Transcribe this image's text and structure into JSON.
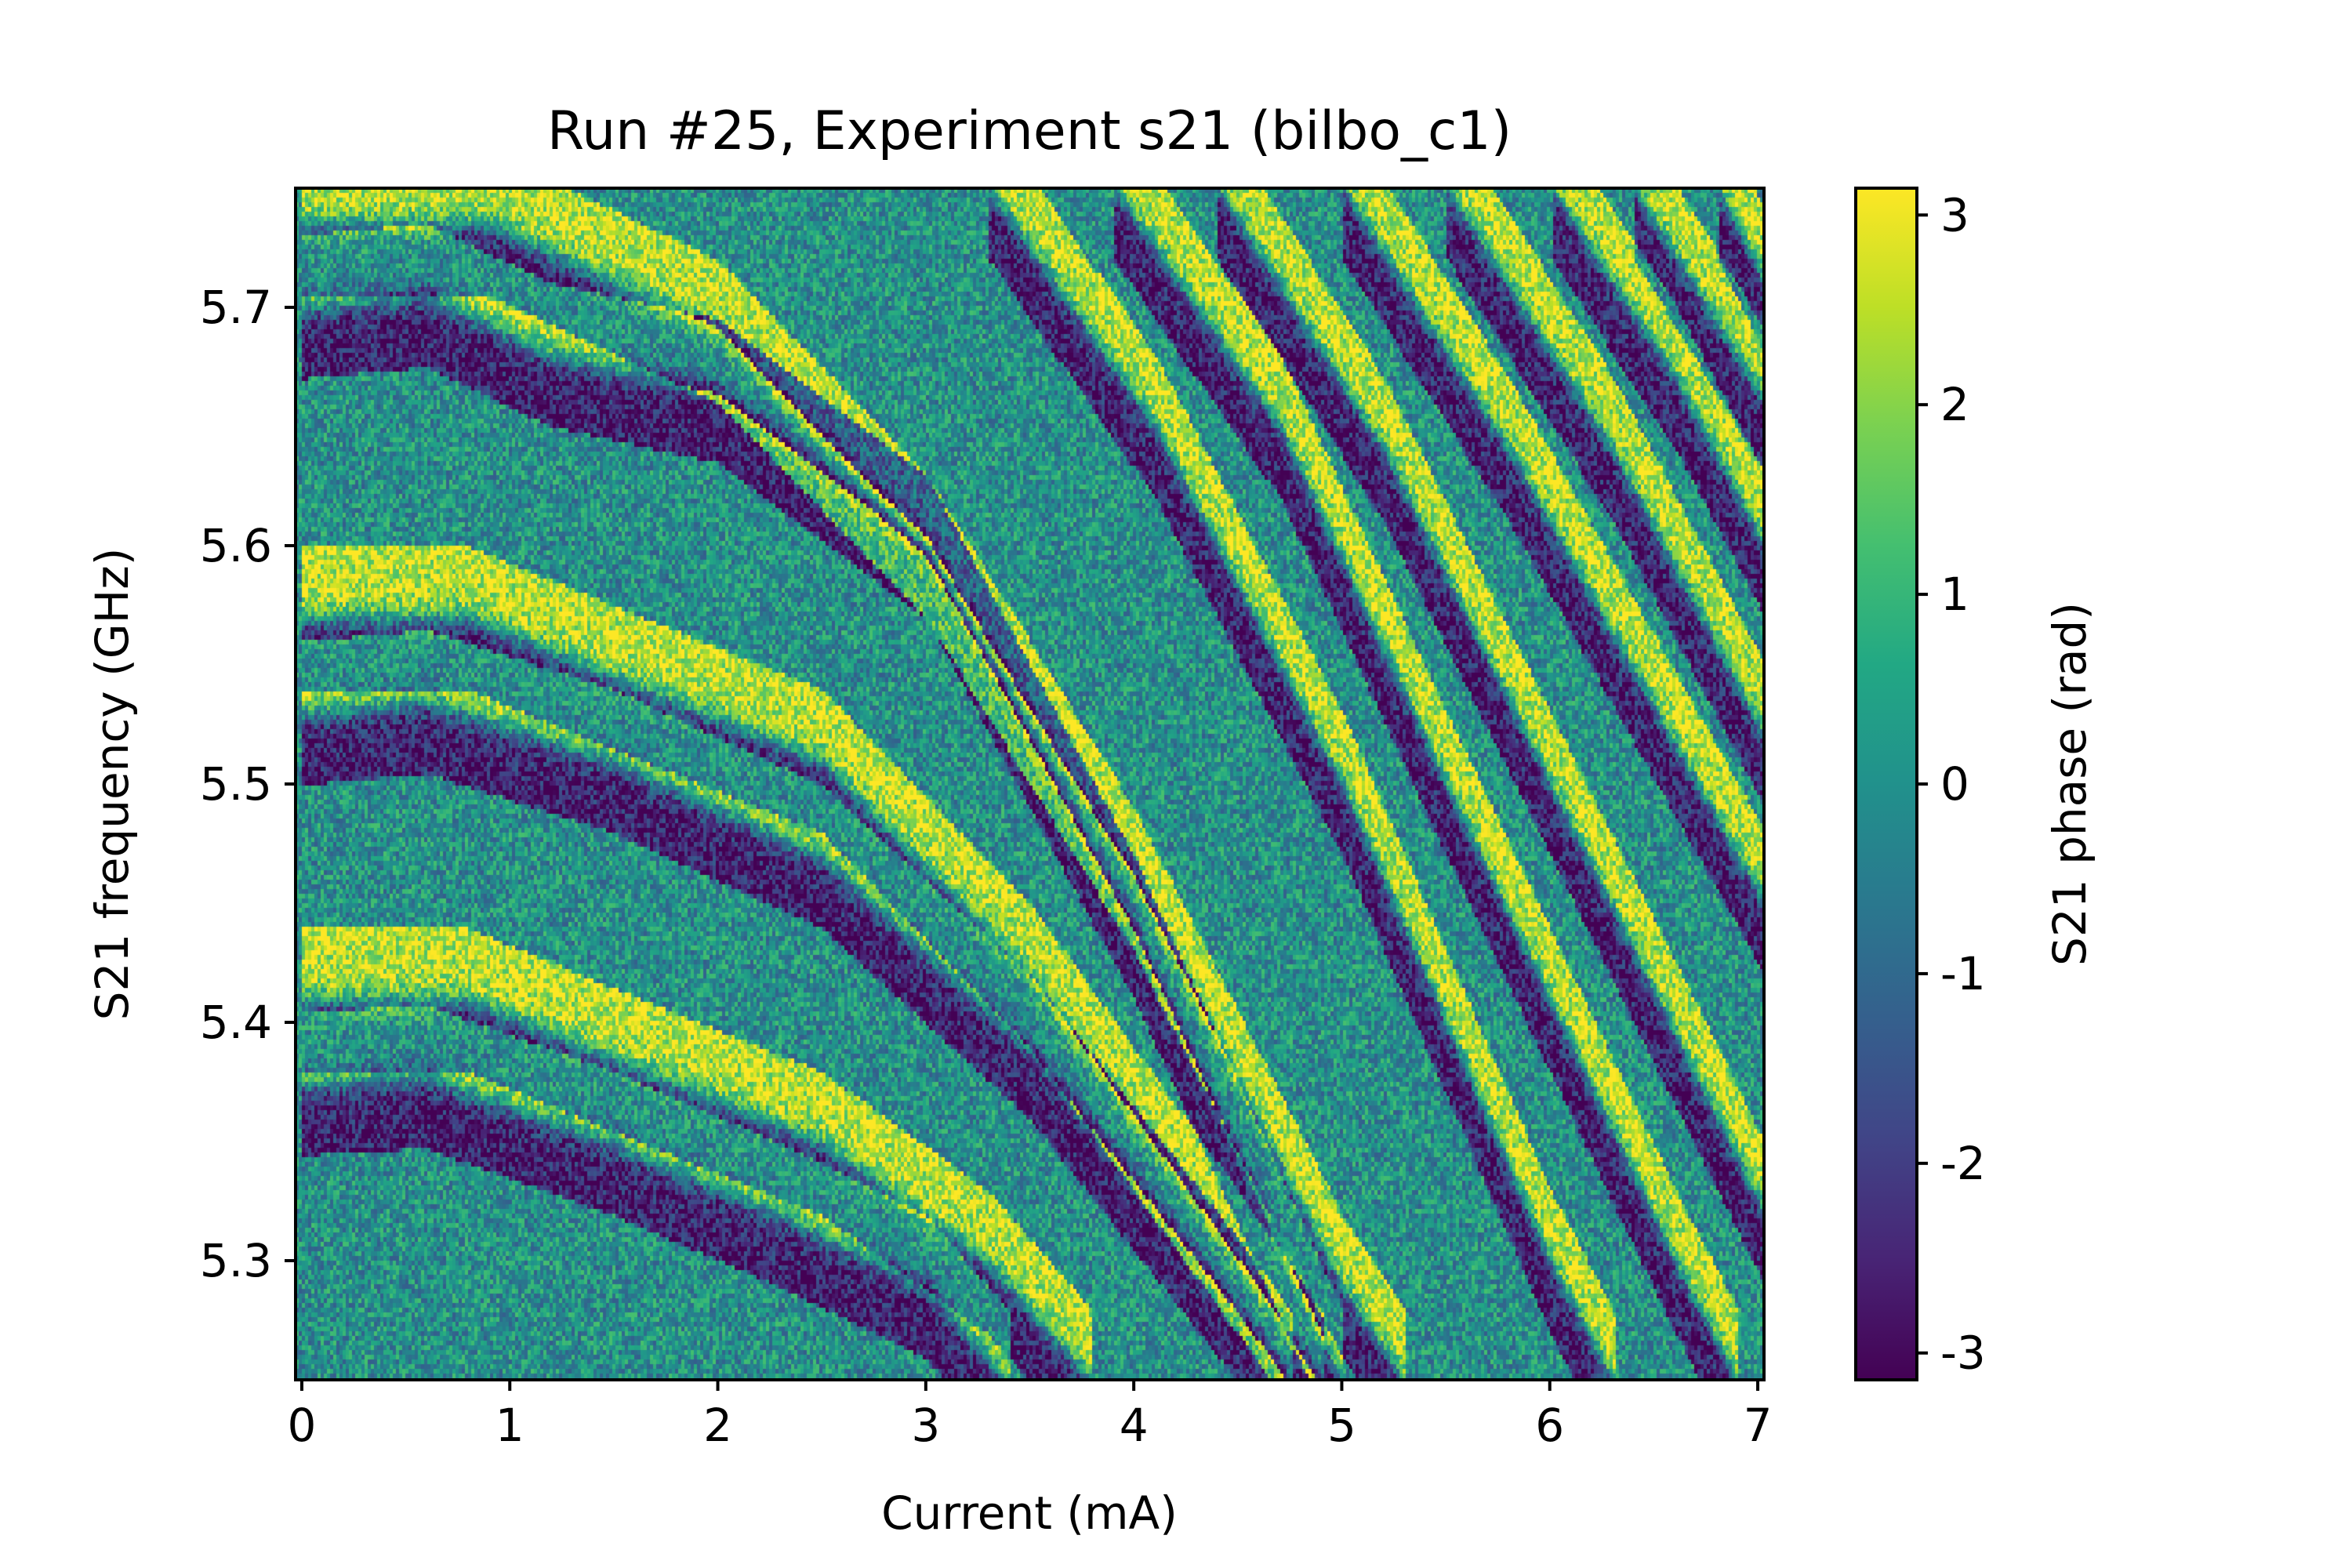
{
  "chart_data": {
    "type": "heatmap",
    "title": "Run #25, Experiment s21 (bilbo_c1)",
    "xlabel": "Current (mA)",
    "ylabel": "S21 frequency (GHz)",
    "colorbar_label": "S21 phase (rad)",
    "xlim": [
      -0.03,
      7.03
    ],
    "ylim": [
      5.25,
      5.75
    ],
    "clim": [
      -3.1416,
      3.1416
    ],
    "colormap": "viridis",
    "x_ticks": [
      0,
      1,
      2,
      3,
      4,
      5,
      6,
      7
    ],
    "x_tick_labels": [
      "0",
      "1",
      "2",
      "3",
      "4",
      "5",
      "6",
      "7"
    ],
    "y_ticks": [
      5.3,
      5.4,
      5.5,
      5.6,
      5.7
    ],
    "y_tick_labels": [
      "5.3",
      "5.4",
      "5.5",
      "5.6",
      "5.7"
    ],
    "colorbar_ticks": [
      3,
      2,
      1,
      0,
      -1,
      -2,
      -3
    ],
    "colorbar_tick_labels": [
      "3",
      "2",
      "1",
      "0",
      "-1",
      "-2",
      "-3"
    ],
    "grid": false,
    "resonance_traces": [
      {
        "points": [
          [
            0,
            5.735
          ],
          [
            0.9,
            5.735
          ],
          [
            2,
            5.69
          ],
          [
            3,
            5.6
          ],
          [
            4,
            5.46
          ],
          [
            5,
            5.29
          ],
          [
            5.3,
            5.25
          ]
        ]
      },
      {
        "points": [
          [
            0,
            5.7
          ],
          [
            0.6,
            5.705
          ],
          [
            1.2,
            5.68
          ],
          [
            2,
            5.665
          ],
          [
            3,
            5.6
          ],
          [
            4,
            5.44
          ],
          [
            5,
            5.25
          ]
        ]
      },
      {
        "points": [
          [
            0,
            5.57
          ],
          [
            0.8,
            5.57
          ],
          [
            1.5,
            5.545
          ],
          [
            2.5,
            5.51
          ],
          [
            3.5,
            5.42
          ],
          [
            4.5,
            5.3
          ],
          [
            4.9,
            5.25
          ]
        ]
      },
      {
        "points": [
          [
            0,
            5.53
          ],
          [
            0.6,
            5.535
          ],
          [
            1.5,
            5.51
          ],
          [
            2.5,
            5.47
          ],
          [
            3.5,
            5.39
          ],
          [
            4.5,
            5.28
          ],
          [
            4.75,
            5.25
          ]
        ]
      },
      {
        "points": [
          [
            0,
            5.41
          ],
          [
            0.8,
            5.41
          ],
          [
            1.5,
            5.385
          ],
          [
            2.5,
            5.35
          ],
          [
            3.3,
            5.3
          ],
          [
            3.8,
            5.25
          ]
        ]
      },
      {
        "points": [
          [
            0,
            5.375
          ],
          [
            0.6,
            5.378
          ],
          [
            1.5,
            5.35
          ],
          [
            2.3,
            5.32
          ],
          [
            3,
            5.29
          ],
          [
            3.4,
            5.25
          ]
        ]
      },
      {
        "points": [
          [
            3.3,
            5.75
          ],
          [
            4.1,
            5.65
          ],
          [
            5,
            5.5
          ],
          [
            6,
            5.3
          ],
          [
            6.3,
            5.25
          ]
        ]
      },
      {
        "points": [
          [
            3.9,
            5.75
          ],
          [
            4.7,
            5.65
          ],
          [
            5.5,
            5.5
          ],
          [
            6.6,
            5.3
          ],
          [
            6.9,
            5.25
          ]
        ]
      },
      {
        "points": [
          [
            4.4,
            5.75
          ],
          [
            5.2,
            5.64
          ],
          [
            6,
            5.5
          ],
          [
            7.03,
            5.32
          ]
        ]
      },
      {
        "points": [
          [
            5.0,
            5.75
          ],
          [
            5.8,
            5.64
          ],
          [
            7.03,
            5.45
          ]
        ]
      },
      {
        "points": [
          [
            5.5,
            5.75
          ],
          [
            6.3,
            5.64
          ],
          [
            7.03,
            5.52
          ]
        ]
      },
      {
        "points": [
          [
            6.0,
            5.75
          ],
          [
            6.6,
            5.67
          ],
          [
            7.03,
            5.6
          ]
        ]
      },
      {
        "points": [
          [
            6.4,
            5.75
          ],
          [
            7.03,
            5.66
          ]
        ]
      },
      {
        "points": [
          [
            6.8,
            5.75
          ],
          [
            7.03,
            5.71
          ]
        ]
      }
    ]
  }
}
